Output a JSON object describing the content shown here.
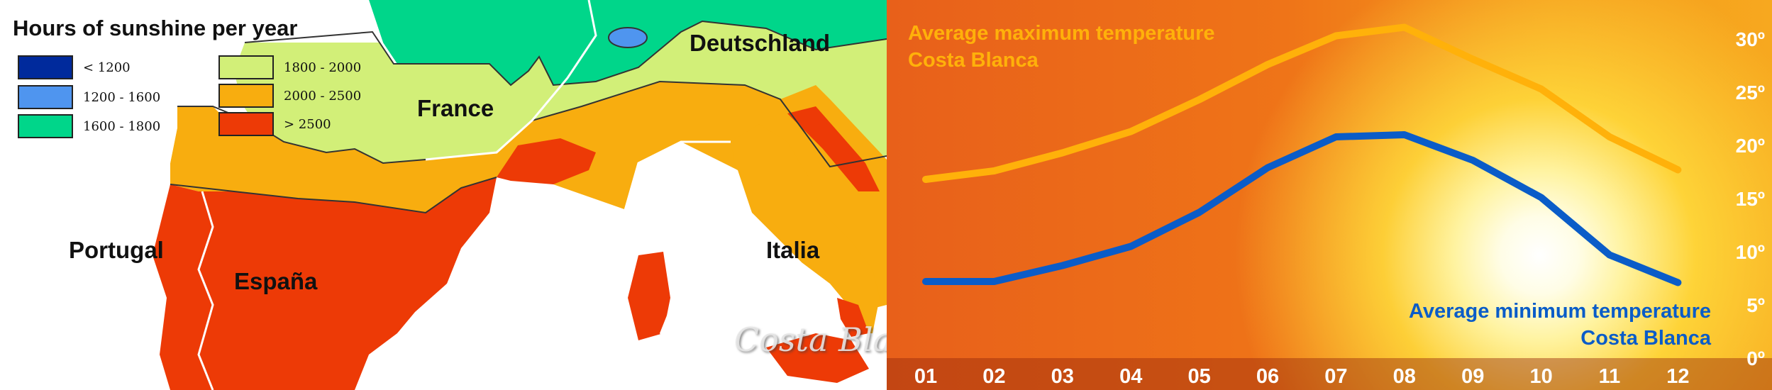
{
  "map": {
    "title": "Hours of sunshine per year",
    "legend": [
      {
        "label": "< 1200",
        "color": "#002a9c"
      },
      {
        "label": "1200 - 1600",
        "color": "#4f95ef"
      },
      {
        "label": "1600 - 1800",
        "color": "#00d68a"
      },
      {
        "label": "1800 - 2000",
        "color": "#d2ef78"
      },
      {
        "label": "2000 - 2500",
        "color": "#f8ad0f"
      },
      {
        "label": "> 2500",
        "color": "#ed3a06"
      }
    ],
    "countries": {
      "deutschland": "Deutschland",
      "france": "France",
      "portugal": "Portugal",
      "espana": "España",
      "italia": "Italia"
    },
    "watermark": "Costa Blanca Events"
  },
  "chart_data": {
    "type": "line",
    "categories": [
      "01",
      "02",
      "03",
      "04",
      "05",
      "06",
      "07",
      "08",
      "09",
      "10",
      "11",
      "12"
    ],
    "series": [
      {
        "name": "Average maximum temperature Costa Blanca",
        "color": "#ffb10a",
        "values": [
          16.8,
          17.6,
          19.3,
          21.3,
          24.3,
          27.6,
          30.3,
          31.1,
          28.1,
          25.3,
          20.8,
          17.7
        ]
      },
      {
        "name": "Average minimum temperature Costa Blanca",
        "color": "#0a5cc8",
        "values": [
          7.2,
          7.2,
          8.7,
          10.5,
          13.7,
          17.9,
          20.8,
          21.0,
          18.6,
          15.1,
          9.7,
          7.1
        ]
      }
    ],
    "ylim": [
      0,
      30
    ],
    "yticks": [
      "0º",
      "5º",
      "10º",
      "15º",
      "20º",
      "25º",
      "30º"
    ],
    "labels": {
      "max_line1": "Average maximum temperature",
      "max_line2": "Costa Blanca",
      "min_line1": "Average minimum temperature",
      "min_line2": "Costa Blanca"
    }
  }
}
